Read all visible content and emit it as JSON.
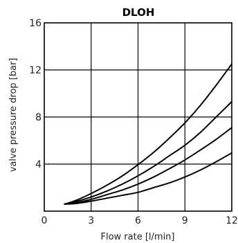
{
  "chart_data": {
    "type": "line",
    "title": "DLOH",
    "xlabel": "Flow rate [l/min]",
    "ylabel": "valve pressure drop [bar]",
    "xlim": [
      0,
      12
    ],
    "ylim": [
      0,
      16
    ],
    "xticks": [
      "0",
      "3",
      "6",
      "9",
      "12"
    ],
    "yticks": [
      "4",
      "8",
      "12",
      "16"
    ],
    "grid": true,
    "series": [
      {
        "x": [
          1.3,
          2,
          3,
          4,
          5,
          6,
          7,
          8,
          9,
          10,
          11,
          12
        ],
        "y": [
          0.6,
          0.9,
          1.5,
          2.2,
          3.0,
          3.95,
          5.0,
          6.2,
          7.5,
          9.0,
          10.7,
          12.5
        ]
      },
      {
        "x": [
          1.3,
          2,
          3,
          4,
          5,
          6,
          7,
          8,
          9,
          10,
          11,
          12
        ],
        "y": [
          0.6,
          0.8,
          1.2,
          1.7,
          2.3,
          3.0,
          3.8,
          4.7,
          5.6,
          6.7,
          8.0,
          9.3
        ]
      },
      {
        "x": [
          1.3,
          2,
          3,
          4,
          5,
          6,
          7,
          8,
          9,
          10,
          11,
          12
        ],
        "y": [
          0.6,
          0.7,
          1.0,
          1.4,
          1.8,
          2.3,
          2.9,
          3.6,
          4.35,
          5.2,
          6.1,
          7.1
        ]
      },
      {
        "x": [
          1.3,
          2,
          3,
          4,
          5,
          6,
          7,
          8,
          9,
          10,
          11,
          12
        ],
        "y": [
          0.6,
          0.65,
          0.85,
          1.1,
          1.35,
          1.6,
          2.0,
          2.4,
          2.9,
          3.5,
          4.2,
          4.95
        ]
      }
    ]
  }
}
